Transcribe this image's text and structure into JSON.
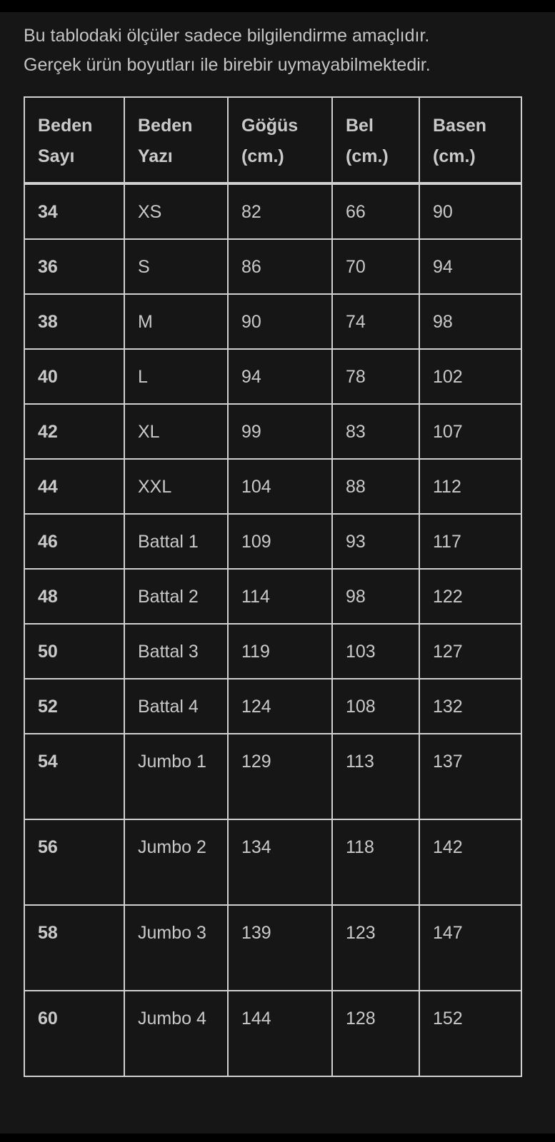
{
  "intro": {
    "line1": "Bu tablodaki ölçüler sadece bilgilendirme amaçlıdır.",
    "line2": "Gerçek ürün boyutları ile birebir uymayabilmektedir."
  },
  "table": {
    "headers": [
      [
        "Beden",
        "Sayı"
      ],
      [
        "Beden",
        "Yazı"
      ],
      [
        "Göğüs",
        "(cm.)"
      ],
      [
        "Bel",
        "(cm.)"
      ],
      [
        "Basen",
        "(cm.)"
      ]
    ],
    "rows": [
      [
        "34",
        "XS",
        "82",
        "66",
        "90"
      ],
      [
        "36",
        "S",
        "86",
        "70",
        "94"
      ],
      [
        "38",
        "M",
        "90",
        "74",
        "98"
      ],
      [
        "40",
        "L",
        "94",
        "78",
        "102"
      ],
      [
        "42",
        "XL",
        "99",
        "83",
        "107"
      ],
      [
        "44",
        "XXL",
        "104",
        "88",
        "112"
      ],
      [
        "46",
        "Battal 1",
        "109",
        "93",
        "117"
      ],
      [
        "48",
        "Battal 2",
        "114",
        "98",
        "122"
      ],
      [
        "50",
        "Battal 3",
        "119",
        "103",
        "127"
      ],
      [
        "52",
        "Battal 4",
        "124",
        "108",
        "132"
      ],
      [
        "54",
        "Jumbo 1",
        "129",
        "113",
        "137"
      ],
      [
        "56",
        "Jumbo 2",
        "134",
        "118",
        "142"
      ],
      [
        "58",
        "Jumbo 3",
        "139",
        "123",
        "147"
      ],
      [
        "60",
        "Jumbo 4",
        "144",
        "128",
        "152"
      ]
    ]
  }
}
